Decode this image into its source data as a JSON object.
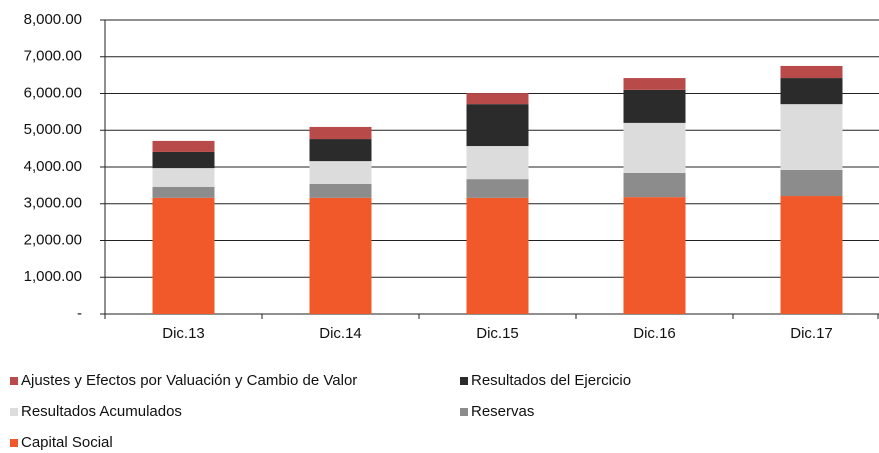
{
  "chart_data": {
    "type": "stacked_bar",
    "categories": [
      "Dic.13",
      "Dic.14",
      "Dic.15",
      "Dic.16",
      "Dic.17"
    ],
    "series": [
      {
        "name": "Capital Social",
        "color": "#f2592a",
        "values": [
          3160,
          3160,
          3160,
          3180,
          3210
        ]
      },
      {
        "name": "Reservas",
        "color": "#8c8c8c",
        "values": [
          300,
          380,
          510,
          660,
          710
        ]
      },
      {
        "name": "Resultados Acumulados",
        "color": "#dcdcdc",
        "values": [
          510,
          620,
          900,
          1360,
          1790
        ]
      },
      {
        "name": "Resultados del Ejercicio",
        "color": "#2b2b2b",
        "values": [
          440,
          600,
          1140,
          900,
          710
        ]
      },
      {
        "name": "Ajustes y Efectos por Valuación y Cambio de Valor",
        "color": "#b84a4a",
        "values": [
          300,
          330,
          300,
          320,
          330
        ]
      }
    ],
    "ylim": [
      0,
      8000
    ],
    "yticks": [
      {
        "value": 0,
        "label": "-"
      },
      {
        "value": 1000,
        "label": "1,000.00"
      },
      {
        "value": 2000,
        "label": "2,000.00"
      },
      {
        "value": 3000,
        "label": "3,000.00"
      },
      {
        "value": 4000,
        "label": "4,000.00"
      },
      {
        "value": 5000,
        "label": "5,000.00"
      },
      {
        "value": 6000,
        "label": "6,000.00"
      },
      {
        "value": 7000,
        "label": "7,000.00"
      },
      {
        "value": 8000,
        "label": "8,000.00"
      }
    ],
    "grid": true
  }
}
